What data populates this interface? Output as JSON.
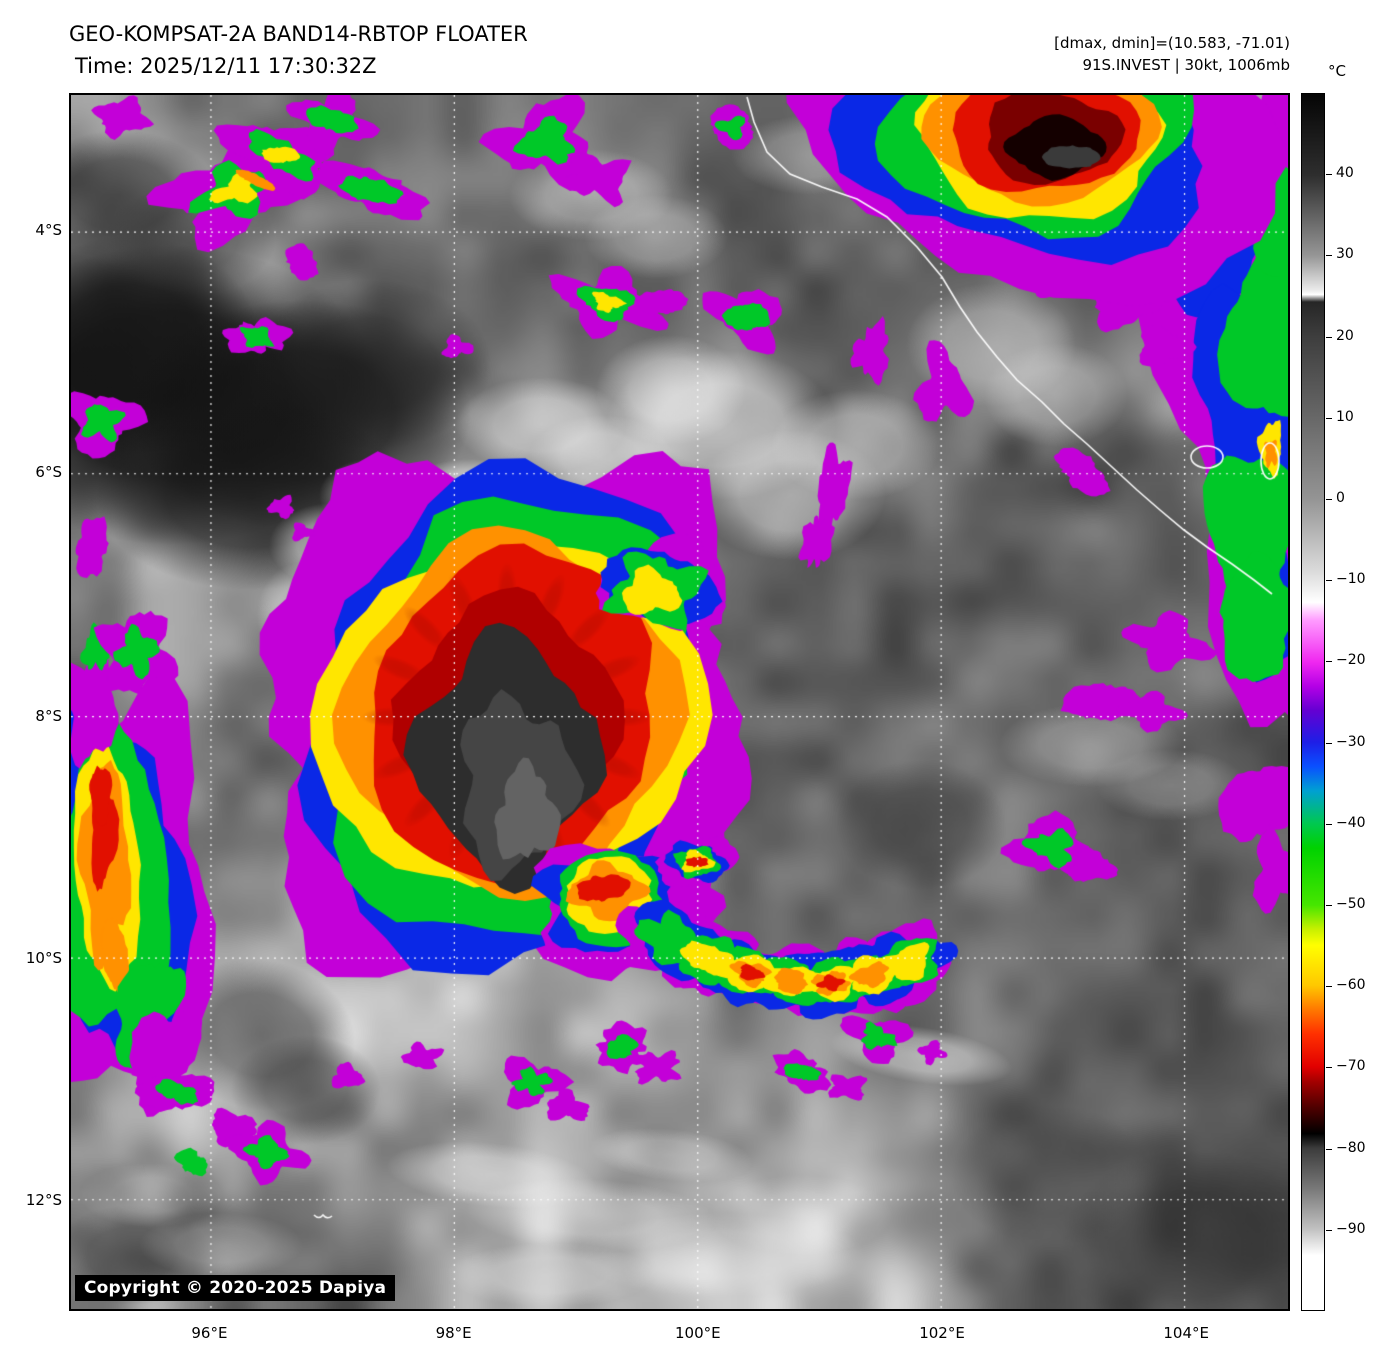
{
  "header": {
    "title": "GEO-KOMPSAT-2A BAND14-RBTOP FLOATER",
    "time_line": "Time: 2025/12/11 17:30:32Z",
    "dmax_dmin_line": "[dmax, dmin]=(10.583, -71.01)",
    "storm_line": "91S.INVEST | 30kt, 1006mb"
  },
  "map": {
    "lat_labels": [
      "4°S",
      "6°S",
      "8°S",
      "10°S",
      "12°S"
    ],
    "lon_labels": [
      "96°E",
      "98°E",
      "100°E",
      "102°E",
      "104°E"
    ],
    "copyright": "Copyright © 2020-2025 Dapiya"
  },
  "colorbar": {
    "unit": "°C",
    "ticks": [
      40,
      30,
      20,
      10,
      0,
      -10,
      -20,
      -30,
      -40,
      -50,
      -60,
      -70,
      -80,
      -90
    ]
  }
}
